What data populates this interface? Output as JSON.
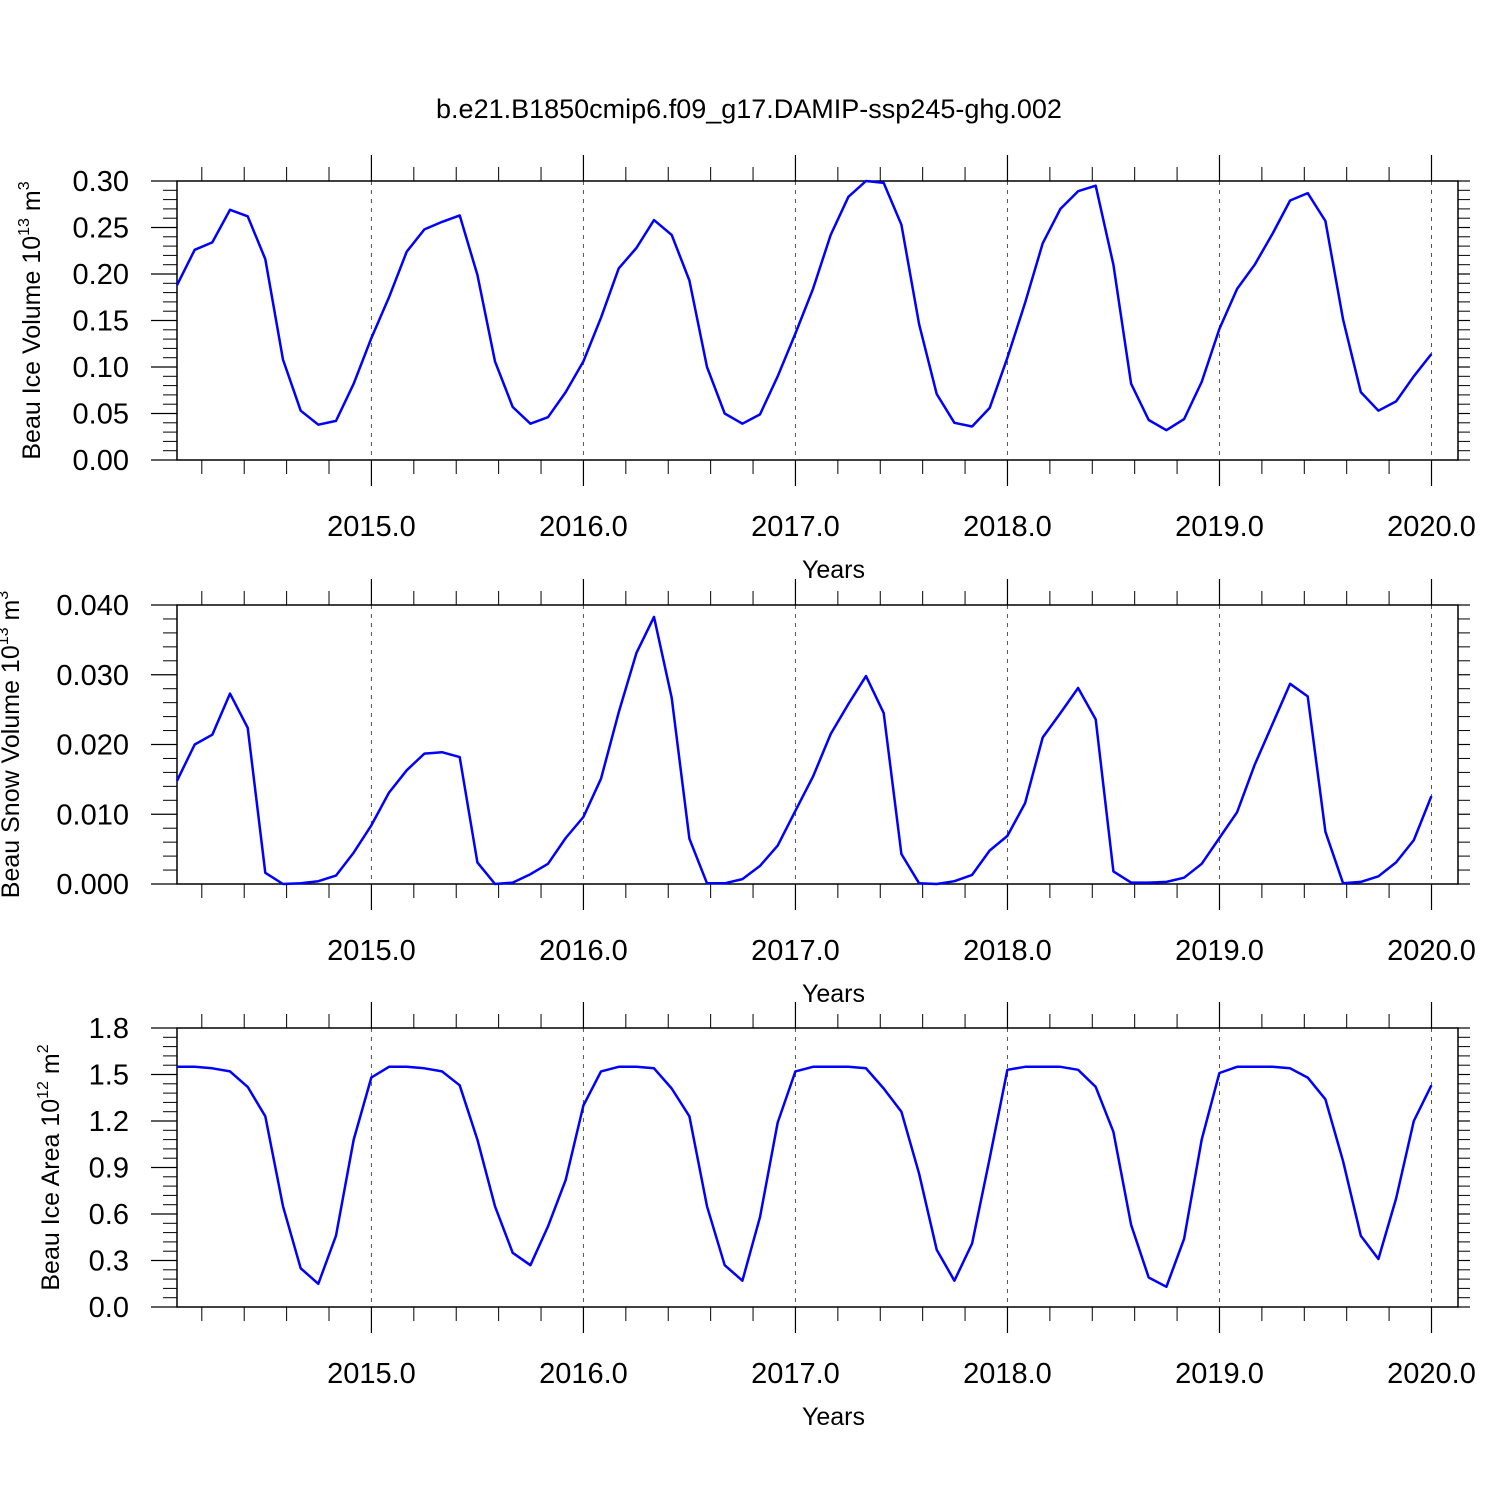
{
  "figure": {
    "title": "b.e21.B1850cmip6.f09_g17.DAMIP-ssp245-ghg.002",
    "line_color": "#0000ff"
  },
  "chart_data": [
    {
      "type": "line",
      "ylabel": {
        "base": "Beau Ice Volume 10",
        "exponent": "13",
        "unit": " m",
        "unit_exponent": "3"
      },
      "xlabel": "Years",
      "xlim": [
        2014.083,
        2020.125
      ],
      "ylim": [
        0.0,
        0.3
      ],
      "x_ticks": [
        2015.0,
        2016.0,
        2017.0,
        2018.0,
        2019.0,
        2020.0
      ],
      "x_tick_labels": [
        "2015.0",
        "2016.0",
        "2017.0",
        "2018.0",
        "2019.0",
        "2020.0"
      ],
      "y_ticks": [
        0.0,
        0.05,
        0.1,
        0.15,
        0.2,
        0.25,
        0.3
      ],
      "y_tick_labels": [
        "0.00",
        "0.05",
        "0.10",
        "0.15",
        "0.20",
        "0.25",
        "0.30"
      ],
      "x_start": 2014.083,
      "x_step": 0.083333,
      "values": [
        0.188,
        0.226,
        0.234,
        0.269,
        0.262,
        0.216,
        0.108,
        0.053,
        0.038,
        0.042,
        0.082,
        0.131,
        0.175,
        0.224,
        0.248,
        0.256,
        0.263,
        0.199,
        0.106,
        0.057,
        0.039,
        0.046,
        0.073,
        0.106,
        0.153,
        0.206,
        0.228,
        0.258,
        0.242,
        0.193,
        0.1,
        0.05,
        0.039,
        0.049,
        0.09,
        0.136,
        0.184,
        0.242,
        0.283,
        0.3,
        0.298,
        0.253,
        0.146,
        0.071,
        0.04,
        0.036,
        0.056,
        0.11,
        0.169,
        0.233,
        0.27,
        0.289,
        0.295,
        0.21,
        0.082,
        0.043,
        0.032,
        0.044,
        0.084,
        0.141,
        0.184,
        0.21,
        0.243,
        0.279,
        0.287,
        0.257,
        0.151,
        0.073,
        0.053,
        0.063,
        0.09,
        0.114
      ]
    },
    {
      "type": "line",
      "ylabel": {
        "base": "Beau Snow Volume 10",
        "exponent": "13",
        "unit": " m",
        "unit_exponent": "3"
      },
      "xlabel": "Years",
      "xlim": [
        2014.083,
        2020.125
      ],
      "ylim": [
        0.0,
        0.04
      ],
      "x_ticks": [
        2015.0,
        2016.0,
        2017.0,
        2018.0,
        2019.0,
        2020.0
      ],
      "x_tick_labels": [
        "2015.0",
        "2016.0",
        "2017.0",
        "2018.0",
        "2019.0",
        "2020.0"
      ],
      "y_ticks": [
        0.0,
        0.01,
        0.02,
        0.03,
        0.04
      ],
      "y_tick_labels": [
        "0.000",
        "0.010",
        "0.020",
        "0.030",
        "0.040"
      ],
      "x_start": 2014.083,
      "x_step": 0.083333,
      "values": [
        0.0148,
        0.02,
        0.0214,
        0.0273,
        0.0224,
        0.0016,
        0.0,
        0.0001,
        0.0004,
        0.0012,
        0.0045,
        0.0084,
        0.0131,
        0.0163,
        0.0187,
        0.0189,
        0.0182,
        0.0031,
        0.0,
        0.0002,
        0.0014,
        0.0029,
        0.0066,
        0.0096,
        0.0151,
        0.0246,
        0.0331,
        0.0383,
        0.0267,
        0.0065,
        0.0001,
        0.0001,
        0.0007,
        0.0026,
        0.0055,
        0.0105,
        0.0154,
        0.0215,
        0.0258,
        0.0298,
        0.0245,
        0.0043,
        0.0001,
        0.0,
        0.0004,
        0.0013,
        0.0048,
        0.0069,
        0.0116,
        0.021,
        0.0245,
        0.0281,
        0.0236,
        0.0018,
        0.0002,
        0.0002,
        0.0003,
        0.0009,
        0.0029,
        0.0066,
        0.0103,
        0.0171,
        0.0229,
        0.0287,
        0.0269,
        0.0075,
        0.0001,
        0.0003,
        0.0011,
        0.0031,
        0.0063,
        0.0126
      ]
    },
    {
      "type": "line",
      "ylabel": {
        "base": "Beau Ice Area 10",
        "exponent": "12",
        "unit": " m",
        "unit_exponent": "2"
      },
      "xlabel": "Years",
      "xlim": [
        2014.083,
        2020.125
      ],
      "ylim": [
        0.0,
        1.8
      ],
      "x_ticks": [
        2015.0,
        2016.0,
        2017.0,
        2018.0,
        2019.0,
        2020.0
      ],
      "x_tick_labels": [
        "2015.0",
        "2016.0",
        "2017.0",
        "2018.0",
        "2019.0",
        "2020.0"
      ],
      "y_ticks": [
        0.0,
        0.3,
        0.6,
        0.9,
        1.2,
        1.5,
        1.8
      ],
      "y_tick_labels": [
        "0.0",
        "0.3",
        "0.6",
        "0.9",
        "1.2",
        "1.5",
        "1.8"
      ],
      "x_start": 2014.083,
      "x_step": 0.083333,
      "values": [
        1.55,
        1.55,
        1.54,
        1.52,
        1.42,
        1.23,
        0.65,
        0.25,
        0.15,
        0.46,
        1.08,
        1.48,
        1.55,
        1.55,
        1.54,
        1.52,
        1.43,
        1.08,
        0.65,
        0.35,
        0.27,
        0.52,
        0.82,
        1.3,
        1.52,
        1.55,
        1.55,
        1.54,
        1.41,
        1.23,
        0.65,
        0.27,
        0.17,
        0.58,
        1.19,
        1.52,
        1.55,
        1.55,
        1.55,
        1.54,
        1.41,
        1.26,
        0.86,
        0.37,
        0.17,
        0.41,
        0.96,
        1.53,
        1.55,
        1.55,
        1.55,
        1.53,
        1.42,
        1.13,
        0.53,
        0.19,
        0.13,
        0.44,
        1.08,
        1.51,
        1.55,
        1.55,
        1.55,
        1.54,
        1.48,
        1.34,
        0.94,
        0.46,
        0.31,
        0.7,
        1.2,
        1.43
      ]
    }
  ]
}
